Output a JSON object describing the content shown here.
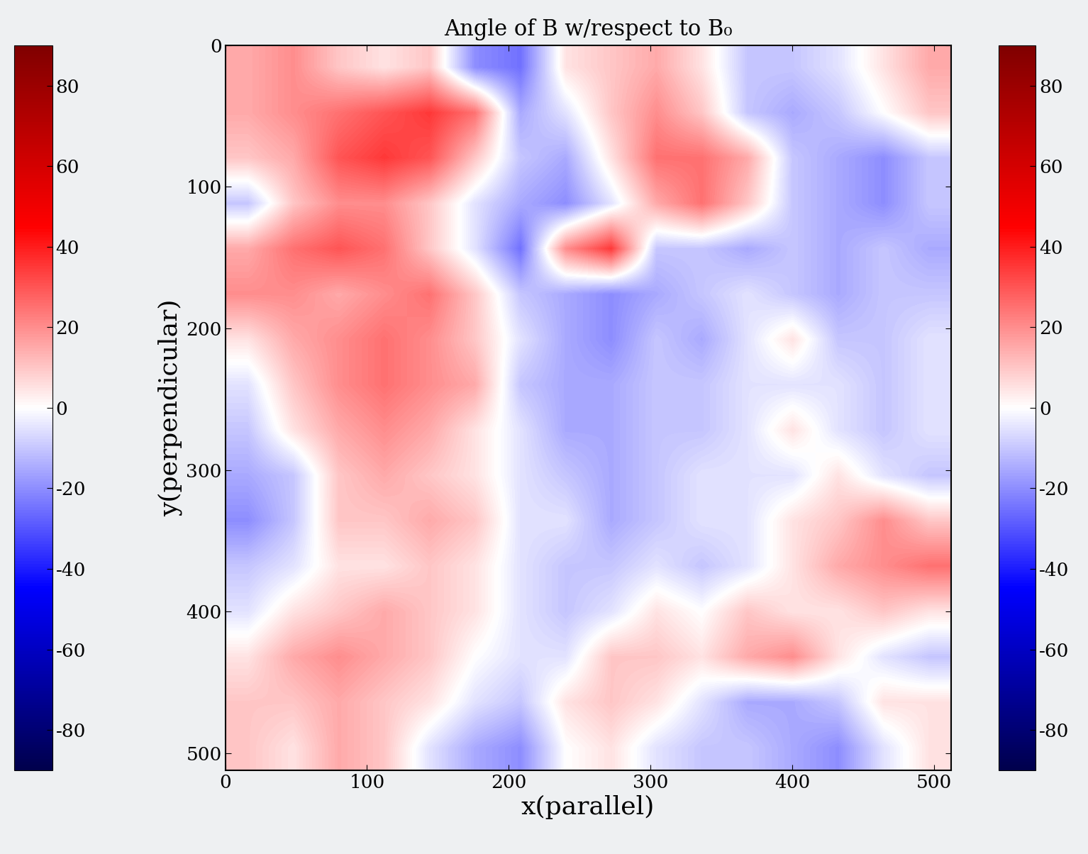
{
  "chart_data": {
    "type": "heatmap",
    "title": "Angle of B w/respect to B₀",
    "x_label": "x(parallel)",
    "y_label": "y(perpendicular)",
    "xlim": [
      0,
      512
    ],
    "ylim": [
      512,
      0
    ],
    "xticks": [
      0,
      100,
      200,
      300,
      400,
      500
    ],
    "yticks": [
      0,
      100,
      200,
      300,
      400,
      500
    ],
    "color": "seismic",
    "colorbar_range": [
      -90,
      90
    ],
    "colorbar_ticks": [
      -80,
      -60,
      -40,
      -20,
      0,
      20,
      40,
      60,
      80
    ],
    "cells": [
      [
        15,
        20,
        10,
        5,
        10,
        -20,
        -25,
        5,
        10,
        15,
        5,
        -10,
        -10,
        -5,
        5,
        15
      ],
      [
        15,
        20,
        25,
        30,
        35,
        25,
        -15,
        -5,
        10,
        20,
        10,
        -10,
        -15,
        -10,
        0,
        10
      ],
      [
        10,
        15,
        30,
        35,
        30,
        10,
        -10,
        -15,
        5,
        25,
        25,
        15,
        -10,
        -15,
        -20,
        -10
      ],
      [
        -10,
        10,
        20,
        20,
        10,
        -5,
        -15,
        -20,
        -5,
        15,
        25,
        10,
        -10,
        -15,
        -20,
        -10
      ],
      [
        15,
        25,
        30,
        25,
        10,
        -5,
        -25,
        20,
        35,
        -10,
        -10,
        -15,
        -10,
        -15,
        -10,
        -15
      ],
      [
        20,
        20,
        15,
        20,
        25,
        10,
        -10,
        -15,
        -20,
        -15,
        -10,
        -5,
        -10,
        -15,
        -10,
        -10
      ],
      [
        5,
        15,
        20,
        25,
        20,
        10,
        -5,
        -15,
        -20,
        -10,
        -15,
        -5,
        5,
        -10,
        -10,
        -5
      ],
      [
        -5,
        10,
        20,
        25,
        20,
        15,
        -10,
        -15,
        -15,
        -10,
        -10,
        -5,
        -5,
        -5,
        -10,
        -5
      ],
      [
        -10,
        5,
        15,
        20,
        15,
        5,
        -5,
        -15,
        -15,
        -10,
        -10,
        -5,
        5,
        -5,
        -10,
        -5
      ],
      [
        -15,
        -10,
        10,
        15,
        10,
        5,
        -5,
        -10,
        -15,
        -10,
        -5,
        -5,
        -5,
        5,
        -5,
        -10
      ],
      [
        -20,
        -10,
        10,
        10,
        15,
        10,
        -5,
        -5,
        -15,
        -10,
        -5,
        -5,
        5,
        10,
        20,
        10
      ],
      [
        -10,
        -5,
        5,
        5,
        10,
        5,
        -5,
        -10,
        -10,
        -5,
        -10,
        -5,
        5,
        15,
        20,
        25
      ],
      [
        -5,
        5,
        10,
        15,
        10,
        5,
        -5,
        -10,
        -5,
        5,
        0,
        10,
        5,
        5,
        10,
        5
      ],
      [
        5,
        15,
        20,
        15,
        10,
        0,
        -5,
        -5,
        10,
        10,
        5,
        15,
        20,
        5,
        -5,
        -10
      ],
      [
        10,
        10,
        15,
        10,
        5,
        -5,
        -10,
        5,
        10,
        5,
        -5,
        -15,
        -15,
        -10,
        5,
        5
      ],
      [
        10,
        5,
        15,
        10,
        -5,
        -15,
        -20,
        0,
        5,
        -5,
        -10,
        -10,
        -15,
        -20,
        -5,
        5
      ]
    ]
  }
}
